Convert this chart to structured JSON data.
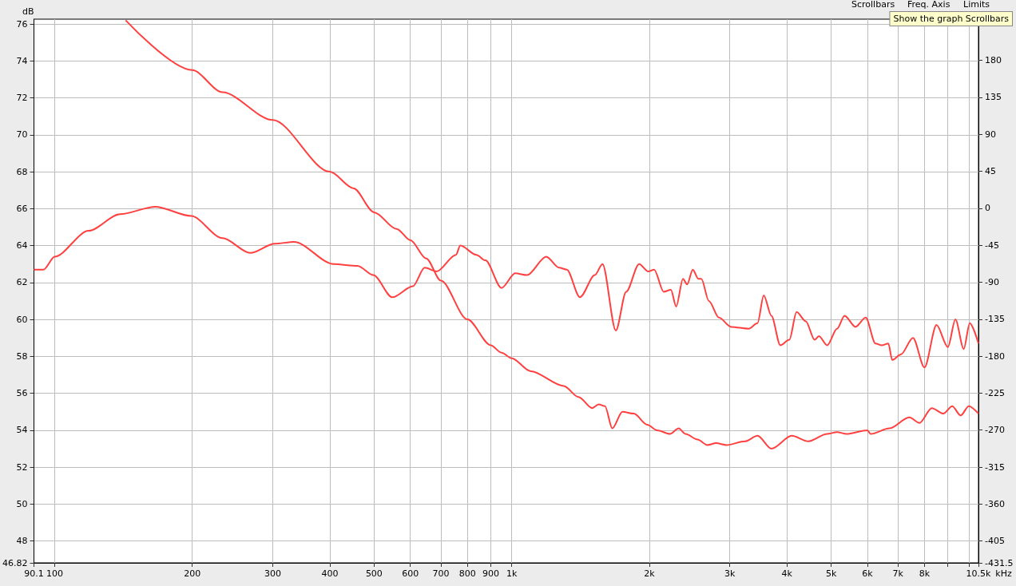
{
  "chart_data": {
    "type": "line",
    "xlabel": "kHz",
    "ylabel": "dB",
    "log": "x",
    "grid": true,
    "marker": "none",
    "line_style": "solid",
    "xlim": [
      90.1,
      10500
    ],
    "xticks": [
      {
        "value": 90.1,
        "label": "90.1"
      },
      100,
      200,
      300,
      400,
      500,
      600,
      700,
      800,
      900,
      {
        "value": 1000,
        "label": "1k"
      },
      {
        "value": 2000,
        "label": "2k"
      },
      {
        "value": 3000,
        "label": "3k"
      },
      {
        "value": 4000,
        "label": "4k"
      },
      {
        "value": 5000,
        "label": "5k"
      },
      {
        "value": 6000,
        "label": "6k"
      },
      {
        "value": 7000,
        "label": "7k"
      },
      {
        "value": 8000,
        "label": "8k"
      },
      {
        "value": 9000,
        "label": null
      },
      {
        "value": 10000,
        "label": null
      },
      {
        "value": 10500,
        "label": "10.5k"
      }
    ],
    "ylim": [
      46.82,
      76.26
    ],
    "yticks": [
      {
        "value": 46.82,
        "label": "46.82"
      },
      48,
      50,
      52,
      54,
      56,
      58,
      60,
      62,
      64,
      66,
      68,
      70,
      72,
      74,
      76
    ],
    "y2lim": [
      -431.5,
      230
    ],
    "y2ticks": [
      {
        "value": -431.5,
        "label": "-431.5"
      },
      -405,
      -360,
      -315,
      -270,
      -225,
      -180,
      -135,
      -90,
      -45,
      0,
      45,
      90,
      135,
      180
    ],
    "annotations": [
      "Scrollbars",
      "Freq. Axis",
      "Limits",
      "Show the graph Scrollbars"
    ],
    "series": [
      {
        "color": "#ff4040",
        "x": [
          143,
          200,
          233,
          300,
          400,
          451,
          500,
          560,
          600,
          650,
          700,
          800,
          900,
          950,
          1000,
          1100,
          1300,
          1400,
          1500,
          1550,
          1600,
          1660,
          1747,
          1850,
          1980,
          2080,
          2220,
          2320,
          2400,
          2550,
          2680,
          2800,
          2950,
          3240,
          3450,
          3700,
          4100,
          4456,
          4900,
          5150,
          5400,
          6000,
          6100,
          6700,
          7413,
          7800,
          8300,
          8800,
          9200,
          9600,
          10000,
          10500
        ],
        "values": [
          76.2,
          73.5,
          72.3,
          70.8,
          68.0,
          67.1,
          65.8,
          64.9,
          64.3,
          63.3,
          62.1,
          60.0,
          58.6,
          58.2,
          57.9,
          57.2,
          56.4,
          55.8,
          55.2,
          55.4,
          55.3,
          54.1,
          55.0,
          54.9,
          54.3,
          54.0,
          53.8,
          54.1,
          53.8,
          53.5,
          53.2,
          53.3,
          53.2,
          53.4,
          53.7,
          53.0,
          53.7,
          53.4,
          53.8,
          53.9,
          53.8,
          54.0,
          53.8,
          54.1,
          54.7,
          54.4,
          55.2,
          54.9,
          55.3,
          54.8,
          55.3,
          54.9
        ]
      },
      {
        "color": "#ff4040",
        "x": [
          90.1,
          94.6,
          100,
          118.7,
          139,
          166,
          199,
          233,
          268,
          303,
          334,
          408,
          460,
          498,
          548,
          608,
          645,
          685,
          755,
          772,
          837,
          876,
          950,
          1018,
          1080,
          1190,
          1270,
          1320,
          1410,
          1520,
          1580,
          1690,
          1780,
          1900,
          1990,
          2050,
          2150,
          2230,
          2290,
          2370,
          2420,
          2490,
          2560,
          2600,
          2700,
          2840,
          3020,
          3300,
          3450,
          3560,
          3700,
          3870,
          4050,
          4200,
          4400,
          4600,
          4700,
          4900,
          5150,
          5350,
          5650,
          5950,
          6250,
          6450,
          6670,
          6800,
          7100,
          7550,
          8000,
          8500,
          9000,
          9350,
          9750,
          10050,
          10500
        ],
        "values": [
          62.7,
          62.7,
          63.4,
          64.8,
          65.7,
          66.1,
          65.6,
          64.4,
          63.6,
          64.1,
          64.2,
          63.0,
          62.9,
          62.4,
          61.2,
          61.8,
          62.8,
          62.6,
          63.5,
          64.0,
          63.5,
          63.2,
          61.7,
          62.5,
          62.4,
          63.4,
          62.8,
          62.7,
          61.2,
          62.4,
          63.0,
          59.4,
          61.5,
          63.0,
          62.6,
          62.7,
          61.5,
          61.6,
          60.7,
          62.2,
          61.9,
          62.7,
          62.2,
          62.2,
          61.0,
          60.1,
          59.6,
          59.5,
          59.8,
          61.3,
          60.2,
          58.6,
          58.9,
          60.4,
          59.9,
          58.9,
          59.1,
          58.6,
          59.5,
          60.2,
          59.6,
          60.1,
          58.7,
          58.6,
          58.7,
          57.8,
          58.1,
          59.0,
          57.4,
          59.7,
          58.5,
          60.0,
          58.4,
          59.8,
          58.7
        ]
      }
    ]
  }
}
